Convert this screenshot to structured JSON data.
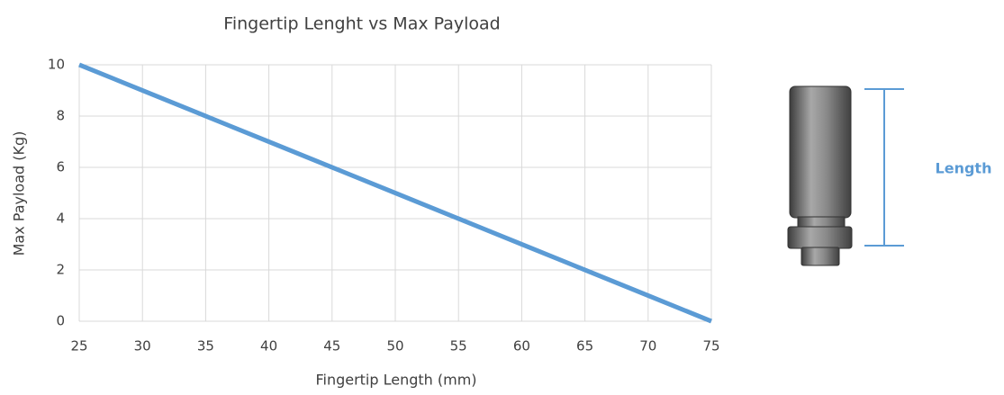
{
  "chart_data": {
    "type": "line",
    "title": "Fingertip Lenght vs Max Payload",
    "x_label": "Fingertip Length (mm)",
    "y_label": "Max Payload (Kg)",
    "x": [
      25,
      30,
      35,
      40,
      45,
      50,
      55,
      60,
      65,
      70,
      75
    ],
    "series": [
      {
        "name": "Max Payload",
        "color": "#5b9bd5",
        "values": [
          10,
          9,
          8,
          7,
          6,
          5,
          4,
          3,
          2,
          1,
          0
        ]
      }
    ],
    "xlim": [
      25,
      75
    ],
    "xticks": [
      25,
      30,
      35,
      40,
      45,
      50,
      55,
      60,
      65,
      70,
      75
    ],
    "ylim": [
      0,
      10
    ],
    "yticks": [
      0,
      2,
      4,
      6,
      8,
      10
    ],
    "grid": true,
    "annotation": "Length"
  }
}
